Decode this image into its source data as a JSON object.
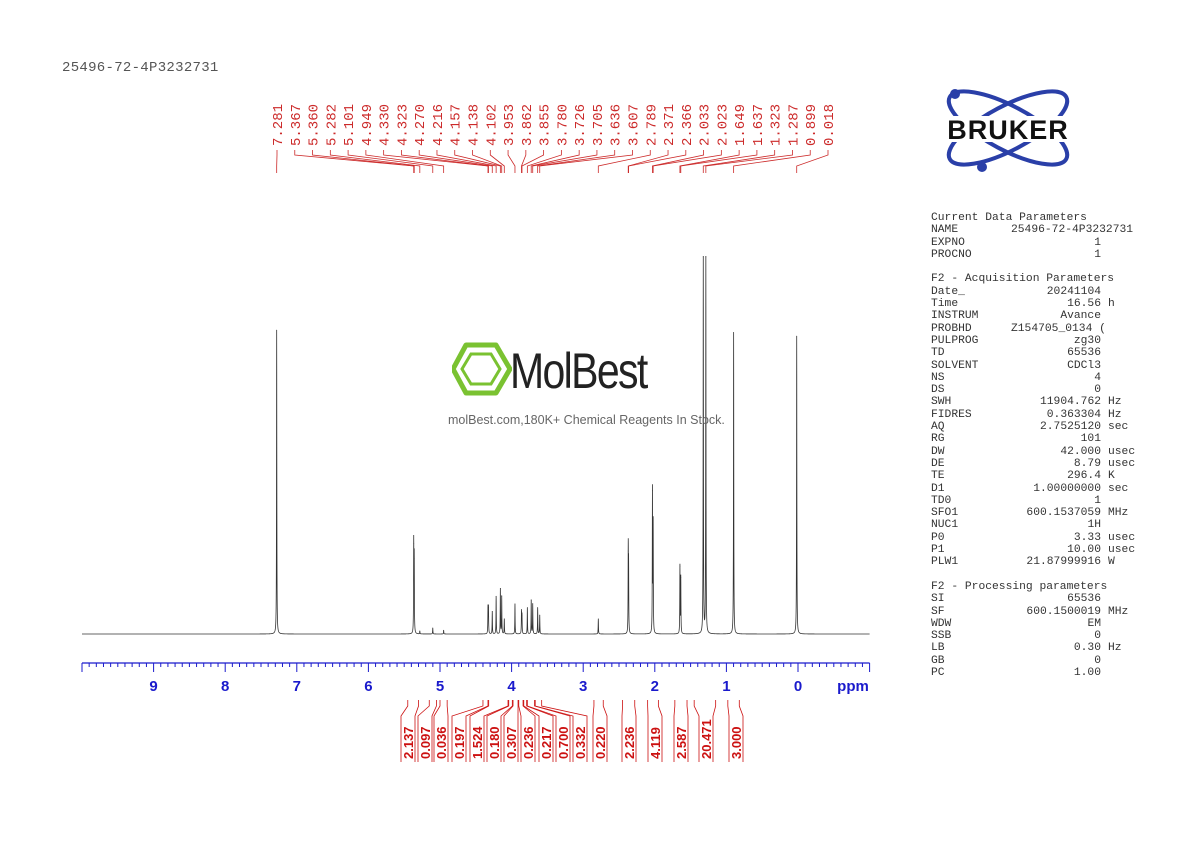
{
  "sample_id": "25496-72-4P3232731",
  "logo": {
    "bruker_text": "BRUKER",
    "brand_color": "#2a3fa8"
  },
  "watermark": {
    "brand": "MolBest",
    "subtitle": "molBest.com,180K+ Chemical Reagents In Stock.",
    "icon": "benzene-ring-icon",
    "icon_color": "#7ac231"
  },
  "parameters": {
    "sections": [
      {
        "title": "Current Data Parameters",
        "rows": [
          {
            "name": "NAME",
            "value": "25496-72-4P3232731",
            "unit": ""
          },
          {
            "name": "EXPNO",
            "value": "1",
            "unit": ""
          },
          {
            "name": "PROCNO",
            "value": "1",
            "unit": ""
          }
        ]
      },
      {
        "title": "F2 - Acquisition Parameters",
        "rows": [
          {
            "name": "Date_",
            "value": "20241104",
            "unit": ""
          },
          {
            "name": "Time",
            "value": "16.56",
            "unit": "h"
          },
          {
            "name": "INSTRUM",
            "value": "Avance",
            "unit": ""
          },
          {
            "name": "PROBHD",
            "value": "Z154705_0134 (",
            "unit": ""
          },
          {
            "name": "PULPROG",
            "value": "zg30",
            "unit": ""
          },
          {
            "name": "TD",
            "value": "65536",
            "unit": ""
          },
          {
            "name": "SOLVENT",
            "value": "CDCl3",
            "unit": ""
          },
          {
            "name": "NS",
            "value": "4",
            "unit": ""
          },
          {
            "name": "DS",
            "value": "0",
            "unit": ""
          },
          {
            "name": "SWH",
            "value": "11904.762",
            "unit": "Hz"
          },
          {
            "name": "FIDRES",
            "value": "0.363304",
            "unit": "Hz"
          },
          {
            "name": "AQ",
            "value": "2.7525120",
            "unit": "sec"
          },
          {
            "name": "RG",
            "value": "101",
            "unit": ""
          },
          {
            "name": "DW",
            "value": "42.000",
            "unit": "usec"
          },
          {
            "name": "DE",
            "value": "8.79",
            "unit": "usec"
          },
          {
            "name": "TE",
            "value": "296.4",
            "unit": "K"
          },
          {
            "name": "D1",
            "value": "1.00000000",
            "unit": "sec"
          },
          {
            "name": "TD0",
            "value": "1",
            "unit": ""
          },
          {
            "name": "SFO1",
            "value": "600.1537059",
            "unit": "MHz"
          },
          {
            "name": "NUC1",
            "value": "1H",
            "unit": ""
          },
          {
            "name": "P0",
            "value": "3.33",
            "unit": "usec"
          },
          {
            "name": "P1",
            "value": "10.00",
            "unit": "usec"
          },
          {
            "name": "PLW1",
            "value": "21.87999916",
            "unit": "W"
          }
        ]
      },
      {
        "title": "F2 - Processing parameters",
        "rows": [
          {
            "name": "SI",
            "value": "65536",
            "unit": ""
          },
          {
            "name": "SF",
            "value": "600.1500019",
            "unit": "MHz"
          },
          {
            "name": "WDW",
            "value": "EM",
            "unit": ""
          },
          {
            "name": "SSB",
            "value": "0",
            "unit": ""
          },
          {
            "name": "LB",
            "value": "0.30",
            "unit": "Hz"
          },
          {
            "name": "GB",
            "value": "0",
            "unit": ""
          },
          {
            "name": "PC",
            "value": "1.00",
            "unit": ""
          }
        ]
      }
    ]
  },
  "chart_data": {
    "type": "line",
    "title": "",
    "xlabel": "ppm",
    "ylabel": "",
    "xlim": [
      10,
      -1
    ],
    "x_reversed": true,
    "x_ticks": [
      9,
      8,
      7,
      6,
      5,
      4,
      3,
      2,
      1,
      0
    ],
    "x_minor_step": 0.1,
    "grid": false,
    "colors": {
      "spectrum": "#333333",
      "axis": "#1a1acc",
      "peak_labels": "#cc2a2a",
      "integrals": "#cc1111"
    },
    "peaks": [
      {
        "ppm": 7.281,
        "intensity": 80.6
      },
      {
        "ppm": 5.367,
        "intensity": 24
      },
      {
        "ppm": 5.36,
        "intensity": 20
      },
      {
        "ppm": 5.282,
        "intensity": 0.8
      },
      {
        "ppm": 5.101,
        "intensity": 1.6
      },
      {
        "ppm": 4.949,
        "intensity": 1.0
      },
      {
        "ppm": 4.33,
        "intensity": 7
      },
      {
        "ppm": 4.323,
        "intensity": 7
      },
      {
        "ppm": 4.27,
        "intensity": 6
      },
      {
        "ppm": 4.216,
        "intensity": 10
      },
      {
        "ppm": 4.157,
        "intensity": 12
      },
      {
        "ppm": 4.138,
        "intensity": 10
      },
      {
        "ppm": 4.102,
        "intensity": 4
      },
      {
        "ppm": 3.953,
        "intensity": 8
      },
      {
        "ppm": 3.862,
        "intensity": 6
      },
      {
        "ppm": 3.855,
        "intensity": 5
      },
      {
        "ppm": 3.78,
        "intensity": 7
      },
      {
        "ppm": 3.726,
        "intensity": 9
      },
      {
        "ppm": 3.705,
        "intensity": 8
      },
      {
        "ppm": 3.636,
        "intensity": 7
      },
      {
        "ppm": 3.607,
        "intensity": 5
      },
      {
        "ppm": 2.789,
        "intensity": 4
      },
      {
        "ppm": 2.371,
        "intensity": 22
      },
      {
        "ppm": 2.366,
        "intensity": 17
      },
      {
        "ppm": 2.033,
        "intensity": 38
      },
      {
        "ppm": 2.023,
        "intensity": 29
      },
      {
        "ppm": 1.649,
        "intensity": 18
      },
      {
        "ppm": 1.637,
        "intensity": 15
      },
      {
        "ppm": 1.323,
        "intensity": 100
      },
      {
        "ppm": 1.287,
        "intensity": 100
      },
      {
        "ppm": 0.899,
        "intensity": 80
      },
      {
        "ppm": 0.018,
        "intensity": 79
      }
    ],
    "integrals": [
      {
        "value": "2.137",
        "range": [
          5.45,
          5.3
        ]
      },
      {
        "value": "0.097",
        "range": [
          5.15,
          5.05
        ]
      },
      {
        "value": "0.036",
        "range": [
          5.0,
          4.9
        ]
      },
      {
        "value": "0.197",
        "range": [
          4.4,
          4.33
        ]
      },
      {
        "value": "1.524",
        "range": [
          4.32,
          4.05
        ]
      },
      {
        "value": "0.180",
        "range": [
          4.04,
          3.99
        ]
      },
      {
        "value": "0.307",
        "range": [
          3.98,
          3.91
        ]
      },
      {
        "value": "0.236",
        "range": [
          3.9,
          3.84
        ]
      },
      {
        "value": "0.217",
        "range": [
          3.83,
          3.79
        ]
      },
      {
        "value": "0.700",
        "range": [
          3.78,
          3.68
        ]
      },
      {
        "value": "0.332",
        "range": [
          3.67,
          3.58
        ]
      },
      {
        "value": "0.220",
        "range": [
          2.85,
          2.72
        ]
      },
      {
        "value": "2.236",
        "range": [
          2.45,
          2.28
        ]
      },
      {
        "value": "4.119",
        "range": [
          2.1,
          1.95
        ]
      },
      {
        "value": "2.587",
        "range": [
          1.72,
          1.55
        ]
      },
      {
        "value": "20.471",
        "range": [
          1.45,
          1.15
        ]
      },
      {
        "value": "3.000",
        "range": [
          0.98,
          0.82
        ]
      }
    ]
  }
}
